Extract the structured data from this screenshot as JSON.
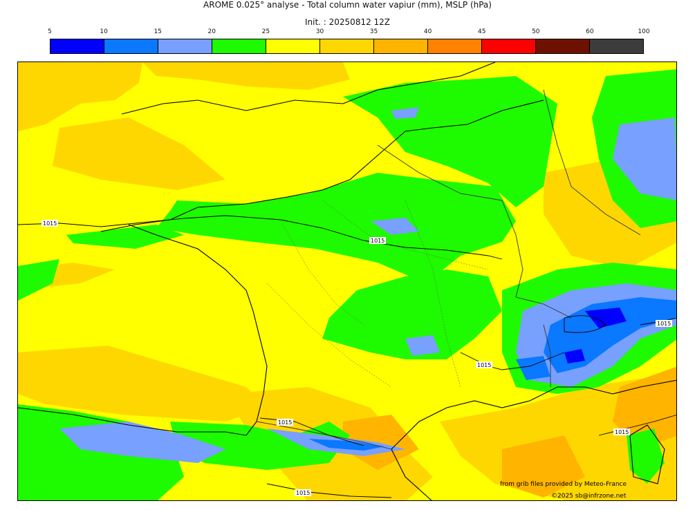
{
  "header": {
    "title": "AROME 0.025° analyse - Total column water vapiur (mm), MSLP (hPa)",
    "init": "Init. : 20250812 12Z"
  },
  "colorbar": {
    "ticks": [
      "5",
      "10",
      "15",
      "20",
      "25",
      "30",
      "35",
      "40",
      "45",
      "50",
      "60",
      "100"
    ],
    "colors": [
      "#0000ff",
      "#0a78ff",
      "#78a0ff",
      "#1efa00",
      "#ffff00",
      "#ffd700",
      "#ffb400",
      "#ff8200",
      "#ff0000",
      "#6e1200",
      "#3c3c3c"
    ]
  },
  "map": {
    "isobar_labels": [
      "1015",
      "1015",
      "1015",
      "1015",
      "1015",
      "1015",
      "1015"
    ],
    "palette": {
      "yellow": "#ffff00",
      "gold": "#ffd700",
      "green": "#1efa00",
      "lightblue": "#78a0ff",
      "blue": "#0a78ff",
      "deepblue": "#0000ff",
      "orange": "#ffb400"
    }
  },
  "credits": {
    "source": "from grib files provided by Meteo-France",
    "copyright": "©2025 sb@infrzone.net"
  }
}
